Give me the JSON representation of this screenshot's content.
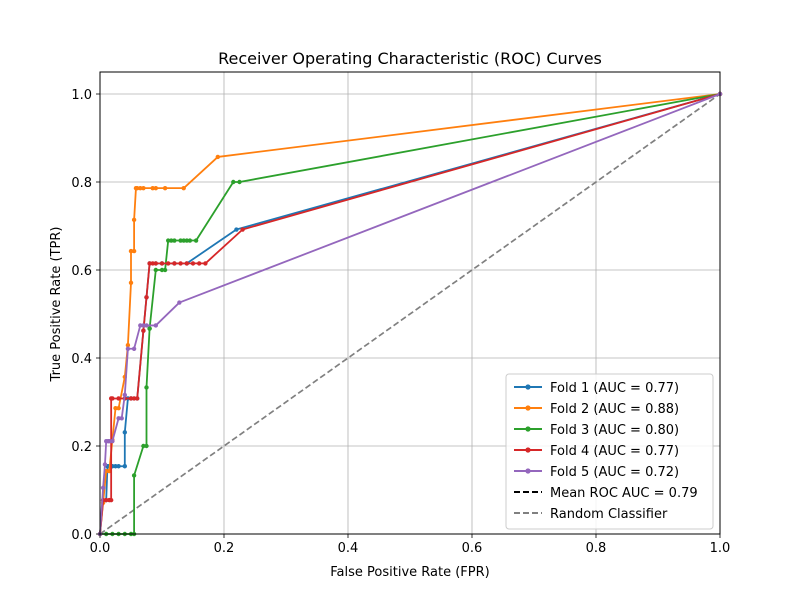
{
  "chart_data": {
    "type": "line",
    "title": "Receiver Operating Characteristic (ROC) Curves",
    "xlabel": "False Positive Rate (FPR)",
    "ylabel": "True Positive Rate (TPR)",
    "xlim": [
      0,
      1
    ],
    "ylim": [
      0,
      1.05
    ],
    "xticks": [
      "0.0",
      "0.2",
      "0.4",
      "0.6",
      "0.8",
      "1.0"
    ],
    "yticks": [
      "0.0",
      "0.2",
      "0.4",
      "0.6",
      "0.8",
      "1.0"
    ],
    "grid": true,
    "legend_location": "lower right",
    "series": [
      {
        "name": "Fold 1 (AUC = 0.77)",
        "color": "#1f77b4",
        "x": [
          0,
          0.005,
          0.01,
          0.012,
          0.015,
          0.02,
          0.025,
          0.03,
          0.04,
          0.04,
          0.045,
          0.05,
          0.06,
          0.07,
          0.075,
          0.08,
          0.09,
          0.1,
          0.12,
          0.14,
          0.22,
          1.0
        ],
        "y": [
          0,
          0.077,
          0.077,
          0.154,
          0.154,
          0.154,
          0.154,
          0.154,
          0.154,
          0.231,
          0.308,
          0.308,
          0.308,
          0.462,
          0.538,
          0.615,
          0.615,
          0.615,
          0.615,
          0.615,
          0.692,
          1.0
        ]
      },
      {
        "name": "Fold 2 (AUC = 0.88)",
        "color": "#ff7f0e",
        "x": [
          0,
          0.005,
          0.01,
          0.015,
          0.02,
          0.025,
          0.03,
          0.04,
          0.045,
          0.05,
          0.05,
          0.055,
          0.055,
          0.058,
          0.06,
          0.065,
          0.07,
          0.085,
          0.09,
          0.105,
          0.135,
          0.19,
          1.0
        ],
        "y": [
          0,
          0.071,
          0.143,
          0.143,
          0.214,
          0.286,
          0.286,
          0.357,
          0.429,
          0.571,
          0.643,
          0.643,
          0.714,
          0.786,
          0.786,
          0.786,
          0.786,
          0.786,
          0.786,
          0.786,
          0.786,
          0.857,
          1.0
        ]
      },
      {
        "name": "Fold 3 (AUC = 0.80)",
        "color": "#2ca02c",
        "x": [
          0,
          0.01,
          0.02,
          0.03,
          0.04,
          0.05,
          0.055,
          0.055,
          0.07,
          0.075,
          0.075,
          0.08,
          0.08,
          0.09,
          0.1,
          0.105,
          0.11,
          0.115,
          0.12,
          0.13,
          0.135,
          0.14,
          0.145,
          0.155,
          0.215,
          0.225,
          1.0
        ],
        "y": [
          0,
          0,
          0,
          0,
          0,
          0,
          0,
          0.133,
          0.2,
          0.2,
          0.333,
          0.467,
          0.467,
          0.6,
          0.6,
          0.6,
          0.667,
          0.667,
          0.667,
          0.667,
          0.667,
          0.667,
          0.667,
          0.667,
          0.8,
          0.8,
          1.0
        ]
      },
      {
        "name": "Fold 4 (AUC = 0.77)",
        "color": "#d62728",
        "x": [
          0,
          0.005,
          0.01,
          0.015,
          0.018,
          0.018,
          0.02,
          0.03,
          0.04,
          0.05,
          0.055,
          0.06,
          0.07,
          0.075,
          0.08,
          0.085,
          0.09,
          0.1,
          0.11,
          0.12,
          0.13,
          0.14,
          0.15,
          0.16,
          0.17,
          0.23,
          1.0
        ],
        "y": [
          0,
          0.077,
          0.077,
          0.077,
          0.077,
          0.308,
          0.308,
          0.308,
          0.308,
          0.308,
          0.308,
          0.308,
          0.462,
          0.538,
          0.615,
          0.615,
          0.615,
          0.615,
          0.615,
          0.615,
          0.615,
          0.615,
          0.615,
          0.615,
          0.615,
          0.692,
          1.0
        ]
      },
      {
        "name": "Fold 5 (AUC = 0.72)",
        "color": "#9467bd",
        "x": [
          0,
          0.005,
          0.008,
          0.01,
          0.013,
          0.015,
          0.02,
          0.03,
          0.035,
          0.04,
          0.045,
          0.055,
          0.065,
          0.07,
          0.075,
          0.09,
          0.128,
          1.0
        ],
        "y": [
          0,
          0.105,
          0.158,
          0.211,
          0.211,
          0.211,
          0.211,
          0.263,
          0.263,
          0.316,
          0.421,
          0.421,
          0.474,
          0.474,
          0.474,
          0.474,
          0.526,
          1.0
        ]
      }
    ],
    "reference_lines": [
      {
        "name": "Mean ROC AUC = 0.79",
        "color": "#000000",
        "style": "dashed"
      },
      {
        "name": "Random Classifier",
        "color": "#808080",
        "style": "dashed",
        "x": [
          0,
          1
        ],
        "y": [
          0,
          1
        ]
      }
    ]
  }
}
